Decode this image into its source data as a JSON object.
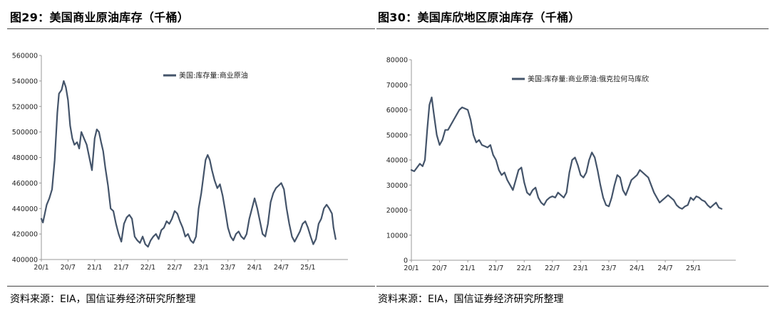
{
  "charts": [
    {
      "id": "left",
      "figure_title": "图29：美国商业原油库存（千桶）",
      "source": "资料来源：EIA，国信证券经济研究所整理"
    },
    {
      "id": "right",
      "figure_title": "图30：美国库欣地区原油库存（千桶）",
      "source": "资料来源：EIA，国信证券经济研究所整理"
    }
  ],
  "line_color": "#44546a",
  "chart_data": [
    {
      "type": "line",
      "title": "图29：美国商业原油库存（千桶）",
      "xlabel": "",
      "ylabel": "",
      "x_ticks": [
        "20/1",
        "20/7",
        "21/1",
        "21/7",
        "22/1",
        "22/7",
        "23/1",
        "23/7",
        "24/1",
        "24/7",
        "25/1"
      ],
      "y_ticks": [
        "400000",
        "420000",
        "440000",
        "460000",
        "480000",
        "500000",
        "520000",
        "540000",
        "560000"
      ],
      "ylim": [
        400000,
        560000
      ],
      "xlim": [
        2020.0,
        2025.75
      ],
      "grid": false,
      "legend": "top-right",
      "series": [
        {
          "name": "美国:库存量:商业原油",
          "x": [
            2020.0,
            2020.03,
            2020.06,
            2020.1,
            2020.15,
            2020.2,
            2020.25,
            2020.3,
            2020.33,
            2020.38,
            2020.42,
            2020.46,
            2020.5,
            2020.54,
            2020.58,
            2020.62,
            2020.67,
            2020.71,
            2020.75,
            2020.8,
            2020.85,
            2020.9,
            2020.95,
            2021.0,
            2021.04,
            2021.08,
            2021.12,
            2021.16,
            2021.2,
            2021.25,
            2021.3,
            2021.35,
            2021.4,
            2021.45,
            2021.5,
            2021.55,
            2021.6,
            2021.65,
            2021.7,
            2021.75,
            2021.8,
            2021.85,
            2021.9,
            2021.95,
            2022.0,
            2022.05,
            2022.1,
            2022.15,
            2022.2,
            2022.25,
            2022.3,
            2022.35,
            2022.4,
            2022.45,
            2022.5,
            2022.55,
            2022.6,
            2022.65,
            2022.7,
            2022.75,
            2022.8,
            2022.85,
            2022.9,
            2022.95,
            2023.0,
            2023.04,
            2023.08,
            2023.12,
            2023.16,
            2023.2,
            2023.25,
            2023.3,
            2023.35,
            2023.4,
            2023.45,
            2023.5,
            2023.55,
            2023.6,
            2023.65,
            2023.7,
            2023.75,
            2023.8,
            2023.85,
            2023.9,
            2023.95,
            2024.0,
            2024.05,
            2024.1,
            2024.15,
            2024.2,
            2024.25,
            2024.3,
            2024.35,
            2024.4,
            2024.45,
            2024.5,
            2024.55,
            2024.6,
            2024.65,
            2024.7,
            2024.75,
            2024.8,
            2024.85,
            2024.9,
            2024.95,
            2025.0,
            2025.05,
            2025.1,
            2025.15,
            2025.2,
            2025.25,
            2025.3,
            2025.35,
            2025.4,
            2025.45,
            2025.48,
            2025.52
          ],
          "y": [
            432000,
            429000,
            435000,
            443000,
            448000,
            455000,
            478000,
            515000,
            530000,
            533000,
            540000,
            535000,
            525000,
            505000,
            495000,
            490000,
            492000,
            487000,
            500000,
            495000,
            490000,
            480000,
            470000,
            495000,
            502000,
            500000,
            492000,
            485000,
            472000,
            458000,
            440000,
            438000,
            428000,
            420000,
            414000,
            428000,
            433000,
            435000,
            432000,
            418000,
            415000,
            413000,
            418000,
            412000,
            410000,
            415000,
            418000,
            420000,
            416000,
            423000,
            425000,
            430000,
            428000,
            432000,
            438000,
            436000,
            430000,
            425000,
            418000,
            420000,
            415000,
            413000,
            418000,
            440000,
            452000,
            465000,
            478000,
            482000,
            478000,
            470000,
            462000,
            456000,
            459000,
            450000,
            438000,
            425000,
            418000,
            415000,
            420000,
            422000,
            418000,
            416000,
            420000,
            432000,
            440000,
            448000,
            440000,
            430000,
            420000,
            418000,
            428000,
            445000,
            452000,
            456000,
            458000,
            460000,
            455000,
            440000,
            428000,
            418000,
            414000,
            418000,
            422000,
            428000,
            430000,
            425000,
            418000,
            412000,
            416000,
            428000,
            432000,
            440000,
            443000,
            440000,
            436000,
            425000,
            416000
          ]
        }
      ]
    },
    {
      "type": "line",
      "title": "图30：美国库欣地区原油库存（千桶）",
      "xlabel": "",
      "ylabel": "",
      "x_ticks": [
        "20/1",
        "20/7",
        "21/1",
        "21/7",
        "22/1",
        "22/7",
        "23/1",
        "23/7",
        "24/1",
        "24/7",
        "25/1"
      ],
      "y_ticks": [
        "0",
        "10000",
        "20000",
        "30000",
        "40000",
        "50000",
        "60000",
        "70000",
        "80000"
      ],
      "ylim": [
        0,
        80000
      ],
      "xlim": [
        2020.0,
        2025.75
      ],
      "grid": false,
      "legend": "top-right",
      "series": [
        {
          "name": "美国:库存量:商业原油:俄克拉何马库欣",
          "x": [
            2020.0,
            2020.05,
            2020.1,
            2020.15,
            2020.2,
            2020.24,
            2020.28,
            2020.32,
            2020.36,
            2020.4,
            2020.45,
            2020.5,
            2020.55,
            2020.6,
            2020.65,
            2020.7,
            2020.75,
            2020.8,
            2020.85,
            2020.9,
            2020.95,
            2021.0,
            2021.05,
            2021.1,
            2021.15,
            2021.2,
            2021.25,
            2021.3,
            2021.35,
            2021.4,
            2021.45,
            2021.5,
            2021.55,
            2021.6,
            2021.65,
            2021.7,
            2021.75,
            2021.8,
            2021.85,
            2021.9,
            2021.95,
            2022.0,
            2022.05,
            2022.1,
            2022.15,
            2022.2,
            2022.25,
            2022.3,
            2022.35,
            2022.4,
            2022.45,
            2022.5,
            2022.55,
            2022.6,
            2022.65,
            2022.7,
            2022.75,
            2022.8,
            2022.85,
            2022.9,
            2022.95,
            2023.0,
            2023.05,
            2023.1,
            2023.15,
            2023.2,
            2023.25,
            2023.3,
            2023.35,
            2023.4,
            2023.45,
            2023.5,
            2023.55,
            2023.6,
            2023.65,
            2023.7,
            2023.75,
            2023.8,
            2023.85,
            2023.9,
            2023.95,
            2024.0,
            2024.05,
            2024.1,
            2024.15,
            2024.2,
            2024.25,
            2024.3,
            2024.35,
            2024.4,
            2024.45,
            2024.5,
            2024.55,
            2024.6,
            2024.65,
            2024.7,
            2024.75,
            2024.8,
            2024.85,
            2024.9,
            2024.95,
            2025.0,
            2025.05,
            2025.1,
            2025.15,
            2025.2,
            2025.25,
            2025.3,
            2025.35,
            2025.4,
            2025.45,
            2025.5
          ],
          "y": [
            36000,
            35500,
            37000,
            38500,
            37500,
            40000,
            52000,
            62000,
            65000,
            58000,
            50000,
            46000,
            48000,
            52000,
            52000,
            54000,
            56000,
            58000,
            60000,
            61000,
            60500,
            60000,
            56000,
            50000,
            47000,
            48000,
            46000,
            45500,
            45000,
            46000,
            42000,
            40000,
            36000,
            34000,
            35000,
            32000,
            30000,
            28000,
            32000,
            36000,
            37000,
            31000,
            27000,
            26000,
            28000,
            29000,
            25000,
            23000,
            22000,
            24000,
            25000,
            25500,
            25000,
            27000,
            26000,
            25000,
            27000,
            35000,
            40000,
            41000,
            38000,
            34000,
            33000,
            35000,
            40000,
            43000,
            41000,
            36000,
            30000,
            25000,
            22000,
            21500,
            25000,
            30000,
            34000,
            33000,
            28000,
            26000,
            29000,
            32000,
            33000,
            34000,
            36000,
            35000,
            34000,
            33000,
            30000,
            27000,
            25000,
            23000,
            24000,
            25000,
            26000,
            25000,
            24000,
            22000,
            21000,
            20500,
            21500,
            22000,
            25000,
            24000,
            25500,
            25000,
            24000,
            23500,
            22000,
            21000,
            22000,
            23000,
            21000,
            20500
          ]
        }
      ]
    }
  ]
}
